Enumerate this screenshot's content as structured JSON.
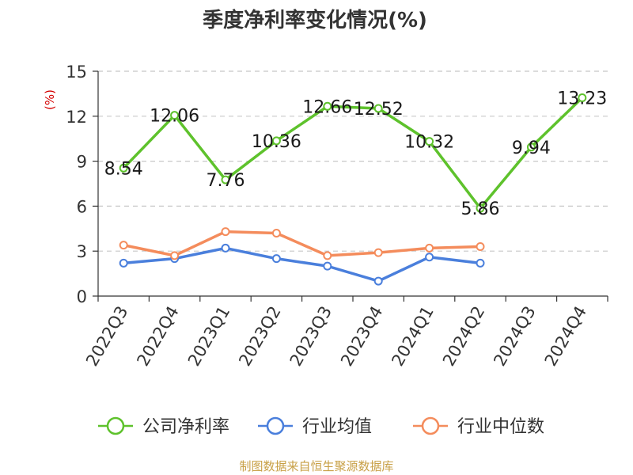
{
  "chart_data": {
    "type": "line",
    "title": "季度净利率变化情况(%)",
    "ylabel": "(%)",
    "xlabel": "",
    "categories": [
      "2022Q3",
      "2022Q4",
      "2023Q1",
      "2023Q2",
      "2023Q3",
      "2023Q4",
      "2024Q1",
      "2024Q2",
      "2024Q3",
      "2024Q4"
    ],
    "y_ticks": [
      0,
      3,
      6,
      9,
      12,
      15
    ],
    "ylim": [
      0,
      15
    ],
    "grid": true,
    "legend_position": "bottom",
    "series": [
      {
        "name": "公司净利率",
        "color": "#5ec22c",
        "values": [
          8.54,
          12.06,
          7.76,
          10.36,
          12.66,
          12.52,
          10.32,
          5.86,
          9.94,
          13.23
        ],
        "labels": [
          "8.54",
          "12.06",
          "7.76",
          "10.36",
          "12.66",
          "12.52",
          "10.32",
          "5.86",
          "9.94",
          "13.23"
        ]
      },
      {
        "name": "行业均值",
        "color": "#4a7fdc",
        "values": [
          2.2,
          2.5,
          3.2,
          2.5,
          2.0,
          1.0,
          2.6,
          2.2,
          null,
          null
        ]
      },
      {
        "name": "行业中位数",
        "color": "#f48c5c",
        "values": [
          3.4,
          2.7,
          4.3,
          4.2,
          2.7,
          2.9,
          3.2,
          3.3,
          null,
          null
        ]
      }
    ]
  },
  "footer": {
    "source": "制图数据来自恒生聚源数据库"
  }
}
